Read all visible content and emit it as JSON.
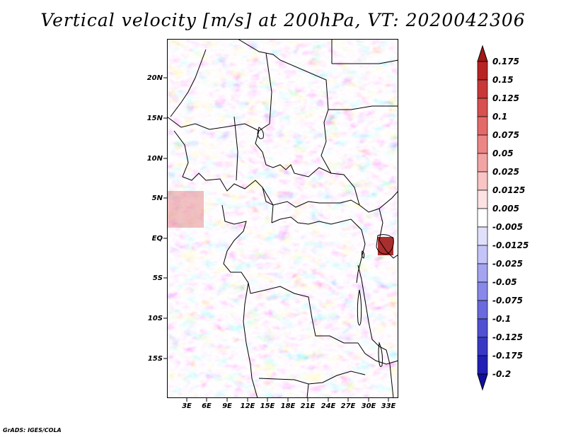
{
  "title": "Vertical velocity [m/s] at 200hPa, VT: 2020042306",
  "footer": "GrADS: IGES/COLA",
  "latitude_labels": [
    "20N",
    "15N",
    "10N",
    "5N",
    "EQ",
    "5S",
    "10S",
    "15S"
  ],
  "longitude_labels": [
    "3E",
    "6E",
    "9E",
    "12E",
    "15E",
    "18E",
    "21E",
    "24E",
    "27E",
    "30E",
    "33E"
  ],
  "colorbar": {
    "labels": [
      "0.175",
      "0.15",
      "0.125",
      "0.1",
      "0.075",
      "0.05",
      "0.025",
      "0.0125",
      "0.005",
      "-0.005",
      "-0.0125",
      "-0.025",
      "-0.05",
      "-0.075",
      "-0.1",
      "-0.125",
      "-0.175",
      "-0.2"
    ],
    "colors": [
      "#a01818",
      "#b82424",
      "#c83838",
      "#d85050",
      "#e46a6a",
      "#ec8686",
      "#f2a4a4",
      "#f8c4c4",
      "#fce2e2",
      "#ffffff",
      "#e0e0fc",
      "#c4c4f8",
      "#a4a4f0",
      "#8888ea",
      "#6a6ade",
      "#5050d2",
      "#3838c4",
      "#2020b4",
      "#1010a0"
    ]
  }
}
